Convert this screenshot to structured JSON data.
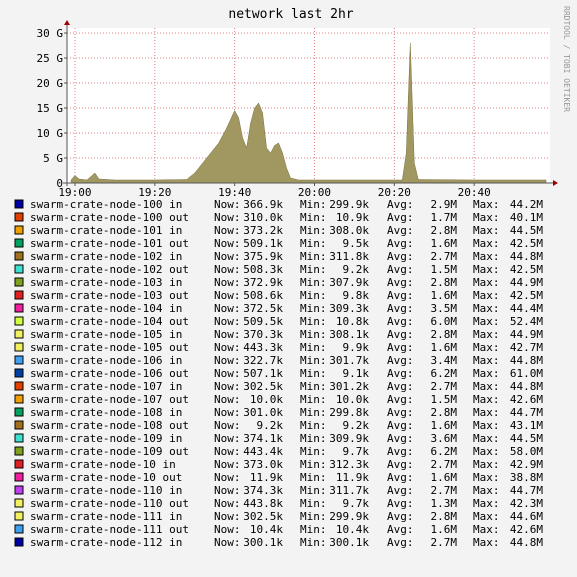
{
  "chart_data": {
    "type": "area",
    "title": "network last 2hr",
    "side_text": "RRDTOOL / TOBI OETIKER",
    "x": [
      "18:59",
      "19:00",
      "19:01",
      "19:03",
      "19:05",
      "19:06",
      "19:10",
      "19:20",
      "19:28",
      "19:30",
      "19:32",
      "19:34",
      "19:36",
      "19:38",
      "19:40",
      "19:41",
      "19:42",
      "19:43",
      "19:44",
      "19:45",
      "19:46",
      "19:47",
      "19:48",
      "19:49",
      "19:50",
      "19:51",
      "19:52",
      "19:53",
      "19:54",
      "19:56",
      "20:10",
      "20:22",
      "20:23",
      "20:24",
      "20:25",
      "20:26",
      "20:40",
      "20:58"
    ],
    "values": [
      0.6,
      1.5,
      0.8,
      0.6,
      2.0,
      0.8,
      0.6,
      0.6,
      0.7,
      2,
      4,
      6,
      8,
      11,
      14.5,
      13,
      9,
      7,
      12,
      15,
      16,
      14,
      7,
      6,
      7.5,
      8,
      6,
      3,
      1,
      0.6,
      0.6,
      0.6,
      6,
      28,
      4,
      0.7,
      0.6,
      0.6
    ],
    "color": "#a09860",
    "xlim": [
      "18:58",
      "20:59"
    ],
    "xticks": [
      "19:00",
      "19:20",
      "19:40",
      "20:00",
      "20:20",
      "20:40"
    ],
    "ylim": [
      0,
      30
    ],
    "yticks": [
      0,
      {
        "value": 5,
        "label": "5 G"
      },
      {
        "value": 10,
        "label": "10 G"
      },
      {
        "value": 15,
        "label": "15 G"
      },
      {
        "value": 20,
        "label": "20 G"
      },
      {
        "value": 25,
        "label": "25 G"
      },
      {
        "value": 30,
        "label": "30 G"
      }
    ],
    "grid": true
  },
  "legend": {
    "labels": [
      "Now:",
      "Min:",
      "Avg:",
      "Max:"
    ],
    "rows": [
      {
        "name": "swarm-crate-node-100 in",
        "color": "#0000a0",
        "now": "366.9k",
        "min": "299.9k",
        "avg": "2.9M",
        "max": "44.2M"
      },
      {
        "name": "swarm-crate-node-100 out",
        "color": "#e04000",
        "now": "310.0k",
        "min": "10.9k",
        "avg": "1.7M",
        "max": "40.1M"
      },
      {
        "name": "swarm-crate-node-101 in",
        "color": "#f0a000",
        "now": "373.2k",
        "min": "308.0k",
        "avg": "2.8M",
        "max": "44.5M"
      },
      {
        "name": "swarm-crate-node-101 out",
        "color": "#00a060",
        "now": "509.1k",
        "min": "9.5k",
        "avg": "1.6M",
        "max": "42.5M"
      },
      {
        "name": "swarm-crate-node-102 in",
        "color": "#a07020",
        "now": "375.9k",
        "min": "311.8k",
        "avg": "2.7M",
        "max": "44.8M"
      },
      {
        "name": "swarm-crate-node-102 out",
        "color": "#40e0d0",
        "now": "508.3k",
        "min": "9.2k",
        "avg": "1.5M",
        "max": "42.5M"
      },
      {
        "name": "swarm-crate-node-103 in",
        "color": "#80a020",
        "now": "372.9k",
        "min": "307.9k",
        "avg": "2.8M",
        "max": "44.9M"
      },
      {
        "name": "swarm-crate-node-103 out",
        "color": "#e02020",
        "now": "508.6k",
        "min": "9.8k",
        "avg": "1.6M",
        "max": "42.5M"
      },
      {
        "name": "swarm-crate-node-104 in",
        "color": "#f020a0",
        "now": "372.5k",
        "min": "309.3k",
        "avg": "3.5M",
        "max": "44.4M"
      },
      {
        "name": "swarm-crate-node-104 out",
        "color": "#d0ff40",
        "now": "509.5k",
        "min": "10.8k",
        "avg": "6.0M",
        "max": "52.4M"
      },
      {
        "name": "swarm-crate-node-105 in",
        "color": "#f0f060",
        "now": "370.3k",
        "min": "308.1k",
        "avg": "2.8M",
        "max": "44.9M"
      },
      {
        "name": "swarm-crate-node-105 out",
        "color": "#f0f060",
        "now": "443.3k",
        "min": "9.9k",
        "avg": "1.6M",
        "max": "42.7M"
      },
      {
        "name": "swarm-crate-node-106 in",
        "color": "#40a0f0",
        "now": "322.7k",
        "min": "301.7k",
        "avg": "3.4M",
        "max": "44.8M"
      },
      {
        "name": "swarm-crate-node-106 out",
        "color": "#0040a0",
        "now": "507.1k",
        "min": "9.1k",
        "avg": "6.2M",
        "max": "61.0M"
      },
      {
        "name": "swarm-crate-node-107 in",
        "color": "#e04000",
        "now": "302.5k",
        "min": "301.2k",
        "avg": "2.7M",
        "max": "44.8M"
      },
      {
        "name": "swarm-crate-node-107 out",
        "color": "#f0a000",
        "now": "10.0k",
        "min": "10.0k",
        "avg": "1.5M",
        "max": "42.6M"
      },
      {
        "name": "swarm-crate-node-108 in",
        "color": "#00a060",
        "now": "301.0k",
        "min": "299.8k",
        "avg": "2.8M",
        "max": "44.7M"
      },
      {
        "name": "swarm-crate-node-108 out",
        "color": "#a07020",
        "now": "9.2k",
        "min": "9.2k",
        "avg": "1.6M",
        "max": "43.1M"
      },
      {
        "name": "swarm-crate-node-109 in",
        "color": "#40e0d0",
        "now": "374.1k",
        "min": "309.9k",
        "avg": "3.6M",
        "max": "44.5M"
      },
      {
        "name": "swarm-crate-node-109 out",
        "color": "#80a020",
        "now": "443.4k",
        "min": "9.7k",
        "avg": "6.2M",
        "max": "58.0M"
      },
      {
        "name": "swarm-crate-node-10 in",
        "color": "#e02020",
        "now": "373.0k",
        "min": "312.3k",
        "avg": "2.7M",
        "max": "42.9M"
      },
      {
        "name": "swarm-crate-node-10 out",
        "color": "#f020a0",
        "now": "11.9k",
        "min": "11.9k",
        "avg": "1.6M",
        "max": "38.8M"
      },
      {
        "name": "swarm-crate-node-110 in",
        "color": "#c040f0",
        "now": "374.3k",
        "min": "311.7k",
        "avg": "2.7M",
        "max": "44.7M"
      },
      {
        "name": "swarm-crate-node-110 out",
        "color": "#f0f060",
        "now": "443.8k",
        "min": "9.7k",
        "avg": "1.3M",
        "max": "42.3M"
      },
      {
        "name": "swarm-crate-node-111 in",
        "color": "#f0f060",
        "now": "302.5k",
        "min": "299.9k",
        "avg": "2.8M",
        "max": "44.6M"
      },
      {
        "name": "swarm-crate-node-111 out",
        "color": "#40a0f0",
        "now": "10.4k",
        "min": "10.4k",
        "avg": "1.6M",
        "max": "42.6M"
      },
      {
        "name": "swarm-crate-node-112 in",
        "color": "#0000a0",
        "now": "300.1k",
        "min": "300.1k",
        "avg": "2.7M",
        "max": "44.8M"
      }
    ]
  }
}
